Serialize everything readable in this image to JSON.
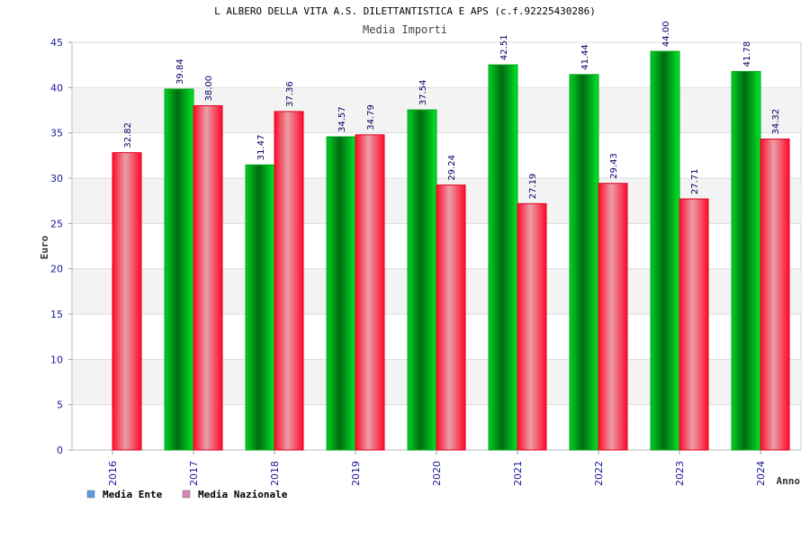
{
  "chart_data": {
    "type": "bar",
    "title": "L ALBERO DELLA VITA A.S. DILETTANTISTICA E APS (c.f.92225430286)",
    "subtitle": "Media Importi",
    "xlabel": "Anno",
    "ylabel": "Euro",
    "ylim": [
      0,
      45
    ],
    "yticks": [
      0,
      5,
      10,
      15,
      20,
      25,
      30,
      35,
      40,
      45
    ],
    "grid": true,
    "legend_position": "bottom-left",
    "categories": [
      "2016",
      "2017",
      "2018",
      "2019",
      "2020",
      "2021",
      "2022",
      "2023",
      "2024"
    ],
    "series": [
      {
        "name": "Media Ente",
        "color": "#00c020",
        "legend_color": "#5b9be6",
        "values": [
          null,
          39.84,
          31.47,
          34.57,
          37.54,
          42.51,
          41.44,
          44.0,
          41.78
        ],
        "labels": [
          "",
          "39.84",
          "31.47",
          "34.57",
          "37.54",
          "42.51",
          "41.44",
          "44.00",
          "41.78"
        ]
      },
      {
        "name": "Media Nazionale",
        "color": "#ff1030",
        "legend_color": "#d985b8",
        "values": [
          32.82,
          38.0,
          37.36,
          34.79,
          29.24,
          27.19,
          29.43,
          27.71,
          34.32
        ],
        "labels": [
          "32.82",
          "38.00",
          "37.36",
          "34.79",
          "29.24",
          "27.19",
          "29.43",
          "27.71",
          "34.32"
        ]
      }
    ]
  }
}
